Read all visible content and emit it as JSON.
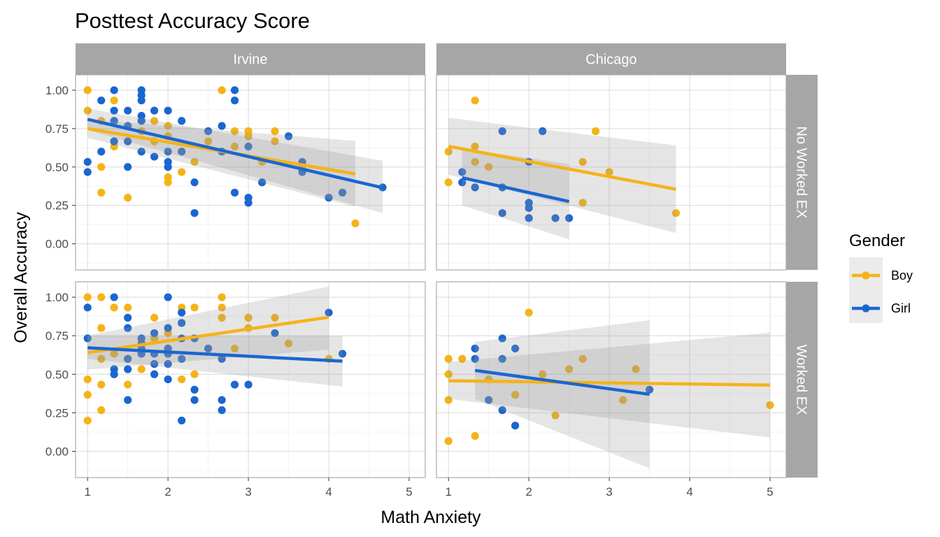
{
  "chart_data": {
    "type": "scatter",
    "title": "Posttest Accuracy Score",
    "xlabel": "Math Anxiety",
    "ylabel": "Overall Accuracy",
    "xlim": [
      0.85,
      5.2
    ],
    "ylim": [
      -0.17,
      1.1
    ],
    "x_ticks": [
      "1",
      "2",
      "3",
      "4",
      "5"
    ],
    "y_ticks": [
      "0.00",
      "0.25",
      "0.50",
      "0.75",
      "1.00"
    ],
    "x_tick_values": [
      1,
      2,
      3,
      4,
      5
    ],
    "y_tick_values": [
      0,
      0.25,
      0.5,
      0.75,
      1.0
    ],
    "grid": true,
    "legend": {
      "title": "Gender",
      "position": "right",
      "entries": [
        {
          "name": "Boy",
          "color": "#F5B317"
        },
        {
          "name": "Girl",
          "color": "#1A66D1"
        }
      ]
    },
    "column_facets": [
      "Irvine",
      "Chicago"
    ],
    "row_facets": [
      "No Worked EX",
      "Worked EX"
    ],
    "panels": [
      {
        "column": "Irvine",
        "row": "No Worked EX",
        "series": [
          {
            "name": "Boy",
            "points": [
              [
                1,
                1.0
              ],
              [
                1,
                0.867
              ],
              [
                1.17,
                0.8
              ],
              [
                1.17,
                0.5
              ],
              [
                1.17,
                0.333
              ],
              [
                1.33,
                0.933
              ],
              [
                1.33,
                0.633
              ],
              [
                1.5,
                0.3
              ],
              [
                1.67,
                0.733
              ],
              [
                1.83,
                0.8
              ],
              [
                1.83,
                0.667
              ],
              [
                2,
                0.767
              ],
              [
                2,
                0.7
              ],
              [
                2,
                0.433
              ],
              [
                2,
                0.4
              ],
              [
                2.17,
                0.467
              ],
              [
                2.33,
                0.533
              ],
              [
                2.5,
                0.667
              ],
              [
                2.67,
                1.0
              ],
              [
                2.83,
                0.733
              ],
              [
                2.83,
                0.633
              ],
              [
                3,
                0.733
              ],
              [
                3,
                0.7
              ],
              [
                3.17,
                0.533
              ],
              [
                3.17,
                0.4
              ],
              [
                3.33,
                0.733
              ],
              [
                3.33,
                0.667
              ],
              [
                3.67,
                0.5
              ],
              [
                4.33,
                0.133
              ]
            ],
            "fit": {
              "x": [
                1,
                4.33
              ],
              "y": [
                0.75,
                0.455
              ],
              "band_lo": [
                0.69,
                0.24
              ],
              "band_hi": [
                0.81,
                0.67
              ]
            }
          },
          {
            "name": "Girl",
            "points": [
              [
                1,
                0.533
              ],
              [
                1,
                0.467
              ],
              [
                1.17,
                0.933
              ],
              [
                1.17,
                0.6
              ],
              [
                1.33,
                1.0
              ],
              [
                1.33,
                0.867
              ],
              [
                1.33,
                0.8
              ],
              [
                1.33,
                0.667
              ],
              [
                1.5,
                0.867
              ],
              [
                1.5,
                0.767
              ],
              [
                1.5,
                0.667
              ],
              [
                1.5,
                0.5
              ],
              [
                1.67,
                1.0
              ],
              [
                1.67,
                0.967
              ],
              [
                1.67,
                0.933
              ],
              [
                1.67,
                0.833
              ],
              [
                1.67,
                0.8
              ],
              [
                1.67,
                0.6
              ],
              [
                1.83,
                0.867
              ],
              [
                1.83,
                0.567
              ],
              [
                2,
                0.867
              ],
              [
                2,
                0.6
              ],
              [
                2,
                0.533
              ],
              [
                2,
                0.5
              ],
              [
                2.17,
                0.8
              ],
              [
                2.17,
                0.6
              ],
              [
                2.33,
                0.4
              ],
              [
                2.33,
                0.2
              ],
              [
                2.5,
                0.733
              ],
              [
                2.67,
                0.767
              ],
              [
                2.67,
                0.6
              ],
              [
                2.83,
                1.0
              ],
              [
                2.83,
                0.933
              ],
              [
                2.83,
                0.333
              ],
              [
                3,
                0.633
              ],
              [
                3,
                0.3
              ],
              [
                3,
                0.267
              ],
              [
                3.17,
                0.4
              ],
              [
                3.5,
                0.7
              ],
              [
                3.67,
                0.533
              ],
              [
                3.67,
                0.467
              ],
              [
                4,
                0.3
              ],
              [
                4.17,
                0.333
              ],
              [
                4.67,
                0.367
              ]
            ],
            "fit": {
              "x": [
                1,
                4.67
              ],
              "y": [
                0.81,
                0.365
              ],
              "band_lo": [
                0.74,
                0.2
              ],
              "band_hi": [
                0.88,
                0.54
              ]
            }
          }
        ]
      },
      {
        "column": "Chicago",
        "row": "No Worked EX",
        "series": [
          {
            "name": "Boy",
            "points": [
              [
                1,
                0.6
              ],
              [
                1,
                0.4
              ],
              [
                1.33,
                0.933
              ],
              [
                1.33,
                0.633
              ],
              [
                1.33,
                0.533
              ],
              [
                1.5,
                0.5
              ],
              [
                2.67,
                0.533
              ],
              [
                2.67,
                0.267
              ],
              [
                2.83,
                0.733
              ],
              [
                3,
                0.467
              ],
              [
                3.83,
                0.2
              ]
            ],
            "fit": {
              "x": [
                1,
                3.83
              ],
              "y": [
                0.635,
                0.355
              ],
              "band_lo": [
                0.45,
                0.07
              ],
              "band_hi": [
                0.82,
                0.64
              ]
            }
          },
          {
            "name": "Girl",
            "points": [
              [
                1.17,
                0.467
              ],
              [
                1.17,
                0.4
              ],
              [
                1.33,
                0.367
              ],
              [
                1.67,
                0.733
              ],
              [
                1.67,
                0.367
              ],
              [
                1.67,
                0.2
              ],
              [
                2,
                0.533
              ],
              [
                2,
                0.267
              ],
              [
                2,
                0.233
              ],
              [
                2,
                0.167
              ],
              [
                2.17,
                0.733
              ],
              [
                2.33,
                0.167
              ],
              [
                2.5,
                0.167
              ]
            ],
            "fit": {
              "x": [
                1.17,
                2.5
              ],
              "y": [
                0.43,
                0.275
              ],
              "band_lo": [
                0.25,
                0.03
              ],
              "band_hi": [
                0.62,
                0.52
              ]
            }
          }
        ]
      },
      {
        "column": "Irvine",
        "row": "Worked EX",
        "series": [
          {
            "name": "Boy",
            "points": [
              [
                1,
                1.0
              ],
              [
                1,
                0.467
              ],
              [
                1,
                0.367
              ],
              [
                1,
                0.2
              ],
              [
                1.17,
                1.0
              ],
              [
                1.17,
                0.8
              ],
              [
                1.17,
                0.6
              ],
              [
                1.17,
                0.433
              ],
              [
                1.17,
                0.267
              ],
              [
                1.33,
                0.933
              ],
              [
                1.33,
                0.633
              ],
              [
                1.5,
                0.933
              ],
              [
                1.5,
                0.433
              ],
              [
                1.67,
                0.633
              ],
              [
                1.67,
                0.533
              ],
              [
                1.83,
                0.867
              ],
              [
                1.83,
                0.733
              ],
              [
                2,
                0.767
              ],
              [
                2,
                0.667
              ],
              [
                2.17,
                0.933
              ],
              [
                2.17,
                0.467
              ],
              [
                2.33,
                0.933
              ],
              [
                2.33,
                0.5
              ],
              [
                2.5,
                0.667
              ],
              [
                2.67,
                1.0
              ],
              [
                2.67,
                0.933
              ],
              [
                2.67,
                0.867
              ],
              [
                2.83,
                0.667
              ],
              [
                3,
                0.867
              ],
              [
                3,
                0.8
              ],
              [
                3.33,
                0.867
              ],
              [
                3.5,
                0.7
              ],
              [
                4,
                0.6
              ]
            ],
            "fit": {
              "x": [
                1,
                4
              ],
              "y": [
                0.64,
                0.87
              ],
              "band_lo": [
                0.53,
                0.66
              ],
              "band_hi": [
                0.75,
                1.07
              ]
            }
          },
          {
            "name": "Girl",
            "points": [
              [
                1,
                0.933
              ],
              [
                1,
                0.733
              ],
              [
                1.33,
                1.0
              ],
              [
                1.33,
                0.533
              ],
              [
                1.33,
                0.5
              ],
              [
                1.5,
                0.867
              ],
              [
                1.5,
                0.8
              ],
              [
                1.5,
                0.6
              ],
              [
                1.5,
                0.533
              ],
              [
                1.5,
                0.333
              ],
              [
                1.67,
                0.733
              ],
              [
                1.67,
                0.7
              ],
              [
                1.67,
                0.667
              ],
              [
                1.67,
                0.633
              ],
              [
                1.83,
                0.767
              ],
              [
                1.83,
                0.633
              ],
              [
                1.83,
                0.567
              ],
              [
                1.83,
                0.5
              ],
              [
                2,
                1.0
              ],
              [
                2,
                0.8
              ],
              [
                2,
                0.667
              ],
              [
                2,
                0.633
              ],
              [
                2,
                0.567
              ],
              [
                2,
                0.467
              ],
              [
                2.17,
                0.9
              ],
              [
                2.17,
                0.833
              ],
              [
                2.17,
                0.733
              ],
              [
                2.17,
                0.6
              ],
              [
                2.17,
                0.2
              ],
              [
                2.33,
                0.733
              ],
              [
                2.33,
                0.4
              ],
              [
                2.33,
                0.333
              ],
              [
                2.5,
                0.667
              ],
              [
                2.67,
                0.6
              ],
              [
                2.67,
                0.333
              ],
              [
                2.67,
                0.267
              ],
              [
                2.83,
                0.433
              ],
              [
                3,
                0.433
              ],
              [
                3.33,
                0.767
              ],
              [
                4,
                0.9
              ],
              [
                4.17,
                0.633
              ]
            ],
            "fit": {
              "x": [
                1,
                4.17
              ],
              "y": [
                0.672,
                0.585
              ],
              "band_lo": [
                0.6,
                0.42
              ],
              "band_hi": [
                0.75,
                0.75
              ]
            }
          }
        ]
      },
      {
        "column": "Chicago",
        "row": "Worked EX",
        "series": [
          {
            "name": "Boy",
            "points": [
              [
                1,
                0.6
              ],
              [
                1,
                0.5
              ],
              [
                1,
                0.333
              ],
              [
                1,
                0.067
              ],
              [
                1.17,
                0.6
              ],
              [
                1.33,
                0.667
              ],
              [
                1.33,
                0.1
              ],
              [
                1.5,
                0.467
              ],
              [
                1.83,
                0.367
              ],
              [
                2,
                0.9
              ],
              [
                2.17,
                0.5
              ],
              [
                2.33,
                0.233
              ],
              [
                2.5,
                0.533
              ],
              [
                2.67,
                0.6
              ],
              [
                3.17,
                0.333
              ],
              [
                3.33,
                0.533
              ],
              [
                5,
                0.3
              ]
            ],
            "fit": {
              "x": [
                1,
                5
              ],
              "y": [
                0.458,
                0.43
              ],
              "band_lo": [
                0.34,
                0.09
              ],
              "band_hi": [
                0.58,
                0.77
              ]
            }
          },
          {
            "name": "Girl",
            "points": [
              [
                1.33,
                0.667
              ],
              [
                1.33,
                0.6
              ],
              [
                1.5,
                0.333
              ],
              [
                1.67,
                0.733
              ],
              [
                1.67,
                0.6
              ],
              [
                1.67,
                0.267
              ],
              [
                1.83,
                0.667
              ],
              [
                1.83,
                0.167
              ],
              [
                3.5,
                0.4
              ]
            ],
            "fit": {
              "x": [
                1.33,
                3.5
              ],
              "y": [
                0.525,
                0.37
              ],
              "band_lo": [
                0.34,
                -0.11
              ],
              "band_hi": [
                0.71,
                0.85
              ]
            }
          }
        ]
      }
    ]
  }
}
